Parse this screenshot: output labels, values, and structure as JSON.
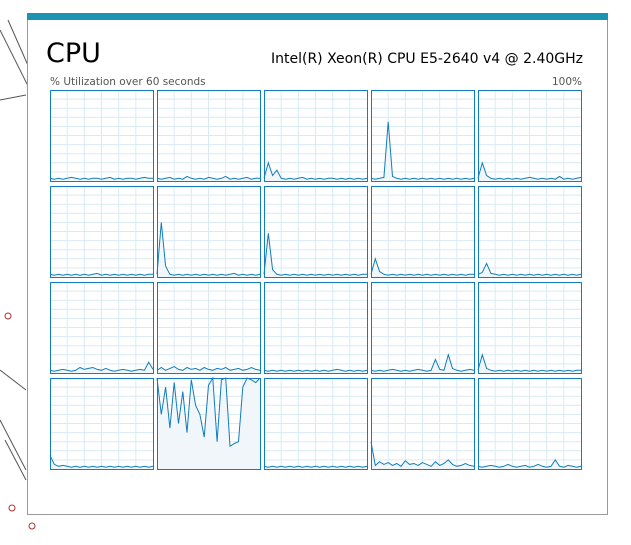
{
  "header": {
    "title": "CPU",
    "processor": "Intel(R) Xeon(R) CPU E5-2640 v4 @ 2.40GHz",
    "caption": "% Utilization over 60 seconds",
    "ymax": {
      "value": 100,
      "label": "100%"
    }
  },
  "graphs": [
    {
      "values": [
        3,
        2,
        3,
        2,
        3,
        4,
        3,
        2,
        3,
        2,
        3,
        3,
        2,
        3,
        4,
        2,
        3,
        2,
        3,
        3,
        2,
        3,
        4,
        3,
        3
      ]
    },
    {
      "values": [
        3,
        2,
        3,
        4,
        2,
        3,
        2,
        5,
        3,
        2,
        3,
        2,
        4,
        3,
        2,
        3,
        5,
        2,
        3,
        2,
        3,
        4,
        2,
        3,
        3
      ]
    },
    {
      "values": [
        3,
        20,
        6,
        12,
        3,
        2,
        3,
        2,
        3,
        4,
        2,
        3,
        2,
        3,
        2,
        3,
        3,
        2,
        3,
        2,
        3,
        2,
        3,
        2,
        3
      ]
    },
    {
      "values": [
        3,
        2,
        3,
        4,
        65,
        5,
        3,
        2,
        3,
        2,
        3,
        2,
        3,
        2,
        3,
        2,
        3,
        2,
        3,
        2,
        3,
        2,
        3,
        2,
        3
      ]
    },
    {
      "values": [
        3,
        20,
        6,
        3,
        2,
        3,
        2,
        3,
        2,
        3,
        2,
        3,
        4,
        3,
        2,
        3,
        2,
        3,
        2,
        5,
        2,
        3,
        2,
        3,
        4
      ]
    },
    {
      "values": [
        3,
        2,
        3,
        2,
        3,
        2,
        3,
        2,
        3,
        2,
        3,
        4,
        2,
        3,
        2,
        3,
        2,
        3,
        2,
        3,
        2,
        3,
        2,
        3,
        3
      ]
    },
    {
      "values": [
        3,
        60,
        12,
        3,
        2,
        3,
        2,
        3,
        2,
        3,
        2,
        3,
        2,
        3,
        2,
        3,
        2,
        3,
        4,
        2,
        3,
        2,
        3,
        2,
        3
      ]
    },
    {
      "values": [
        3,
        48,
        8,
        3,
        2,
        3,
        2,
        3,
        2,
        3,
        2,
        3,
        2,
        3,
        2,
        3,
        2,
        3,
        2,
        3,
        2,
        3,
        2,
        3,
        3
      ]
    },
    {
      "values": [
        3,
        20,
        6,
        3,
        2,
        3,
        2,
        3,
        2,
        3,
        2,
        3,
        2,
        3,
        2,
        3,
        2,
        3,
        2,
        3,
        2,
        3,
        2,
        3,
        3
      ]
    },
    {
      "values": [
        3,
        5,
        15,
        4,
        3,
        2,
        3,
        2,
        3,
        2,
        3,
        2,
        3,
        2,
        3,
        2,
        3,
        2,
        3,
        2,
        3,
        2,
        3,
        2,
        3
      ]
    },
    {
      "values": [
        3,
        2,
        3,
        4,
        3,
        2,
        3,
        6,
        4,
        5,
        6,
        4,
        3,
        5,
        3,
        2,
        3,
        4,
        3,
        2,
        3,
        4,
        3,
        12,
        4
      ]
    },
    {
      "values": [
        3,
        6,
        3,
        5,
        7,
        4,
        3,
        6,
        4,
        5,
        3,
        6,
        4,
        3,
        5,
        4,
        6,
        3,
        4,
        5,
        3,
        4,
        6,
        4,
        3
      ]
    },
    {
      "values": [
        3,
        2,
        3,
        2,
        3,
        2,
        3,
        2,
        3,
        2,
        3,
        2,
        3,
        2,
        3,
        2,
        3,
        4,
        3,
        2,
        3,
        2,
        3,
        2,
        3
      ]
    },
    {
      "values": [
        3,
        2,
        3,
        2,
        3,
        4,
        3,
        2,
        3,
        2,
        3,
        4,
        3,
        2,
        3,
        15,
        4,
        3,
        20,
        5,
        3,
        2,
        3,
        4,
        3
      ]
    },
    {
      "values": [
        3,
        20,
        5,
        3,
        2,
        3,
        2,
        3,
        2,
        3,
        2,
        3,
        2,
        3,
        2,
        3,
        2,
        3,
        2,
        3,
        2,
        3,
        2,
        3,
        3
      ]
    },
    {
      "values": [
        15,
        5,
        3,
        4,
        3,
        2,
        3,
        2,
        3,
        2,
        3,
        2,
        3,
        2,
        3,
        2,
        3,
        2,
        3,
        2,
        3,
        2,
        3,
        2,
        3
      ]
    },
    {
      "values": [
        100,
        60,
        90,
        45,
        95,
        50,
        85,
        40,
        98,
        70,
        60,
        35,
        92,
        100,
        30,
        98,
        100,
        25,
        28,
        30,
        90,
        100,
        98,
        95,
        100
      ]
    },
    {
      "values": [
        3,
        2,
        3,
        2,
        3,
        2,
        3,
        2,
        3,
        2,
        3,
        2,
        3,
        2,
        3,
        2,
        3,
        2,
        3,
        2,
        3,
        2,
        3,
        2,
        3
      ]
    },
    {
      "values": [
        30,
        4,
        8,
        5,
        7,
        4,
        6,
        3,
        9,
        5,
        6,
        4,
        7,
        5,
        3,
        8,
        4,
        6,
        10,
        5,
        3,
        4,
        6,
        4,
        3
      ]
    },
    {
      "values": [
        3,
        2,
        3,
        4,
        3,
        2,
        3,
        5,
        3,
        2,
        3,
        4,
        2,
        3,
        5,
        3,
        2,
        3,
        10,
        3,
        2,
        4,
        3,
        2,
        3
      ]
    }
  ]
}
